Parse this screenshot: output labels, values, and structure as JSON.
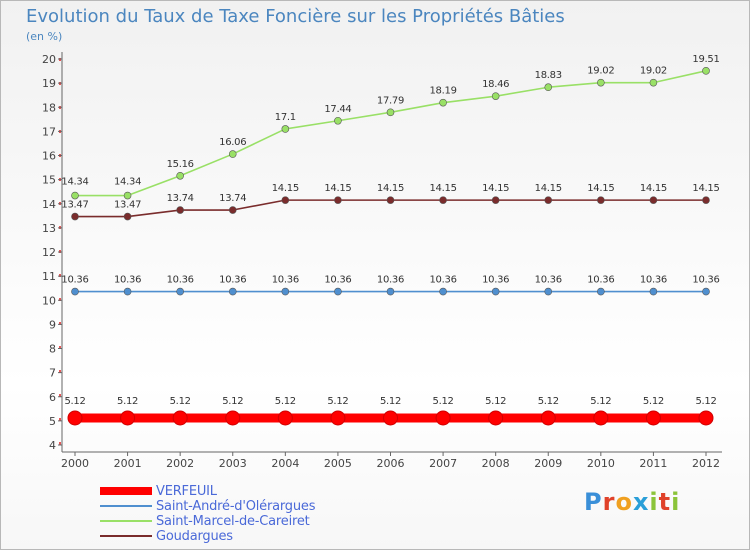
{
  "chart_data": {
    "type": "line",
    "title": "Evolution du Taux de Taxe Foncière sur les Propriétés Bâties",
    "ylabel": "(en %)",
    "xlabel": "",
    "categories": [
      "2000",
      "2001",
      "2002",
      "2003",
      "2004",
      "2005",
      "2006",
      "2007",
      "2008",
      "2009",
      "2010",
      "2011",
      "2012"
    ],
    "ylim": [
      4,
      20
    ],
    "yticks": [
      "4",
      "5",
      "6",
      "7",
      "8",
      "9",
      "10",
      "11",
      "12",
      "13",
      "14",
      "15",
      "16",
      "17",
      "18",
      "19",
      "20"
    ],
    "series": [
      {
        "name": "VERFEUIL",
        "color": "#ff0000",
        "values": [
          5.12,
          5.12,
          5.12,
          5.12,
          5.12,
          5.12,
          5.12,
          5.12,
          5.12,
          5.12,
          5.12,
          5.12,
          5.12
        ],
        "labels": [
          "5.12",
          "5.12",
          "5.12",
          "5.12",
          "5.12",
          "5.12",
          "5.12",
          "5.12",
          "5.12",
          "5.12",
          "5.12",
          "5.12",
          "5.12"
        ]
      },
      {
        "name": "Saint-André-d'Olérargues",
        "color": "#4f8fcf",
        "values": [
          10.36,
          10.36,
          10.36,
          10.36,
          10.36,
          10.36,
          10.36,
          10.36,
          10.36,
          10.36,
          10.36,
          10.36,
          10.36
        ],
        "labels": [
          "10.36",
          "10.36",
          "10.36",
          "10.36",
          "10.36",
          "10.36",
          "10.36",
          "10.36",
          "10.36",
          "10.36",
          "10.36",
          "10.36",
          "10.36"
        ]
      },
      {
        "name": "Saint-Marcel-de-Careiret",
        "color": "#99e066",
        "values": [
          14.34,
          14.34,
          15.16,
          16.06,
          17.1,
          17.44,
          17.79,
          18.19,
          18.46,
          18.83,
          19.02,
          19.02,
          19.51
        ],
        "labels": [
          "14.34",
          "14.34",
          "15.16",
          "16.06",
          "17.1",
          "17.44",
          "17.79",
          "18.19",
          "18.46",
          "18.83",
          "19.02",
          "19.02",
          "19.51"
        ]
      },
      {
        "name": "Goudargues",
        "color": "#7a2c2c",
        "values": [
          13.47,
          13.47,
          13.74,
          13.74,
          14.15,
          14.15,
          14.15,
          14.15,
          14.15,
          14.15,
          14.15,
          14.15,
          14.15
        ],
        "labels": [
          "13.47",
          "13.47",
          "13.74",
          "13.74",
          "14.15",
          "14.15",
          "14.15",
          "14.15",
          "14.15",
          "14.15",
          "14.15",
          "14.15",
          "14.15"
        ]
      }
    ],
    "grid": false,
    "legend_position": "bottom-left"
  },
  "logo": {
    "letters": [
      "P",
      "r",
      "o",
      "x",
      "i",
      "t",
      "i"
    ]
  }
}
